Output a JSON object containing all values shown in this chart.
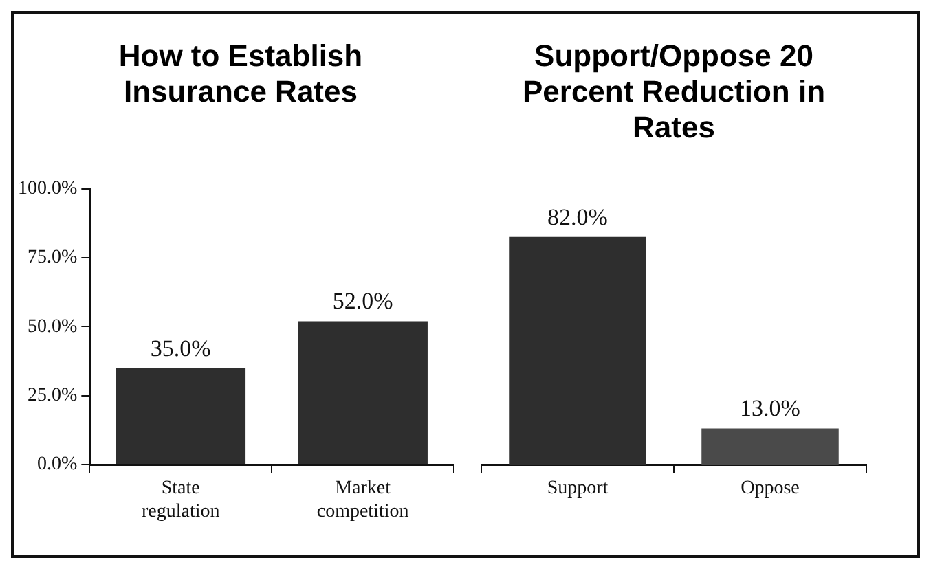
{
  "chart_data": [
    {
      "type": "bar",
      "title": "How to Establish Insurance Rates",
      "categories": [
        "State regulation",
        "Market competition"
      ],
      "values": [
        35,
        52
      ],
      "value_labels": [
        "35.0%",
        "52.0%"
      ],
      "color": "#2e2e2e",
      "ylim": [
        0,
        100
      ],
      "yticks": [
        {
          "value": 0,
          "label": "0.0%"
        },
        {
          "value": 25,
          "label": "25.0%"
        },
        {
          "value": 50,
          "label": "50.0%"
        },
        {
          "value": 75,
          "label": "75.0%"
        },
        {
          "value": 100,
          "label": "100.0%"
        }
      ]
    },
    {
      "type": "bar",
      "title": "Support/Oppose 20 Percent Reduction in Rates",
      "categories": [
        "Support",
        "Oppose"
      ],
      "values": [
        82,
        13
      ],
      "value_labels": [
        "82.0%",
        "13.0%"
      ],
      "colors": [
        "#2e2e2e",
        "#4a4a4a"
      ],
      "ylim": [
        0,
        100
      ],
      "tick_labels": "x"
    }
  ]
}
